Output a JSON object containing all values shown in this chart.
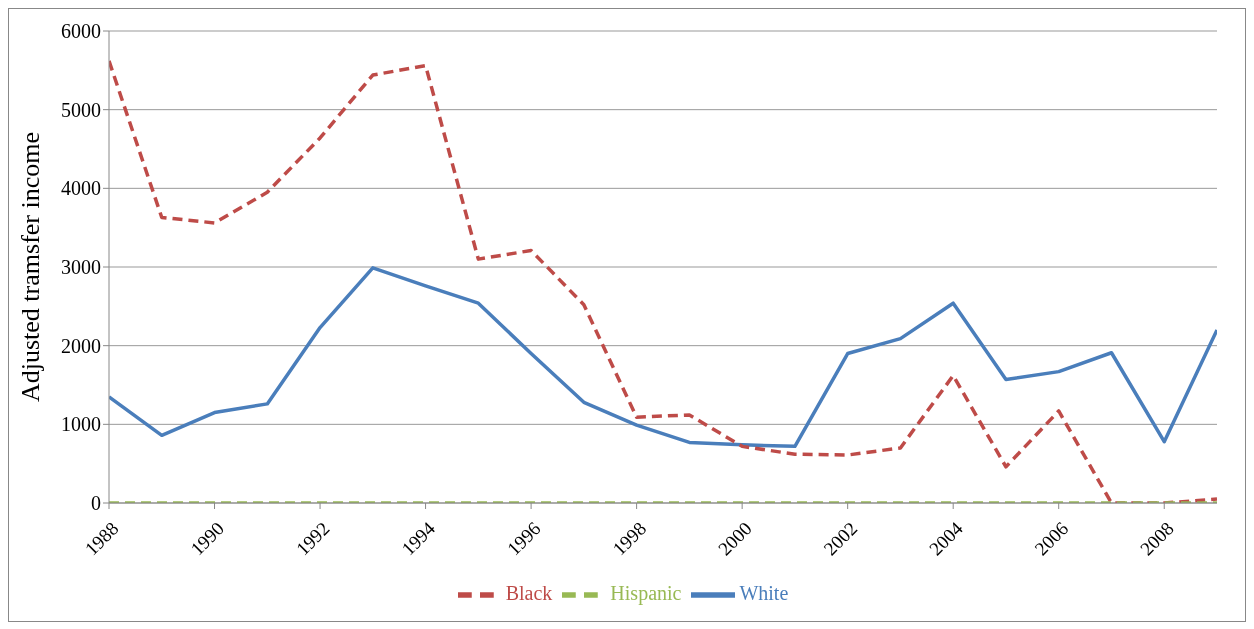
{
  "chart_data": {
    "type": "line",
    "ylabel": "Adjusted tramsfer  income",
    "x": [
      1988,
      1989,
      1990,
      1991,
      1992,
      1993,
      1994,
      1995,
      1996,
      1997,
      1998,
      1999,
      2000,
      2001,
      2002,
      2003,
      2004,
      2005,
      2006,
      2007,
      2008,
      2009
    ],
    "xlim": [
      1988,
      2009
    ],
    "xticks": [
      1988,
      1990,
      1992,
      1994,
      1996,
      1998,
      2000,
      2002,
      2004,
      2006,
      2008
    ],
    "ylim": [
      0,
      6000
    ],
    "yticks": [
      0,
      1000,
      2000,
      3000,
      4000,
      5000,
      6000
    ],
    "grid": "y",
    "legend": "bottom",
    "marker": "none",
    "series": [
      {
        "name": "White",
        "color": "#4a7ebb",
        "line_style": "solid",
        "values": [
          1350,
          860,
          1150,
          1260,
          2230,
          2990,
          2760,
          2540,
          1900,
          1280,
          990,
          770,
          740,
          720,
          1900,
          2090,
          2540,
          1570,
          1670,
          1910,
          780,
          2200
        ]
      },
      {
        "name": "Black",
        "color": "#be4b48",
        "line_style": "dashed",
        "values": [
          5620,
          3630,
          3560,
          3950,
          4640,
          5440,
          5560,
          3100,
          3210,
          2520,
          1090,
          1120,
          720,
          620,
          610,
          700,
          1620,
          460,
          1170,
          0,
          0,
          50
        ]
      },
      {
        "name": "Hispanic",
        "color": "#98b954",
        "line_style": "dashed",
        "values": [
          0,
          0,
          0,
          0,
          0,
          0,
          0,
          0,
          0,
          0,
          0,
          0,
          0,
          0,
          0,
          0,
          0,
          0,
          0,
          0,
          0,
          0
        ]
      }
    ]
  }
}
